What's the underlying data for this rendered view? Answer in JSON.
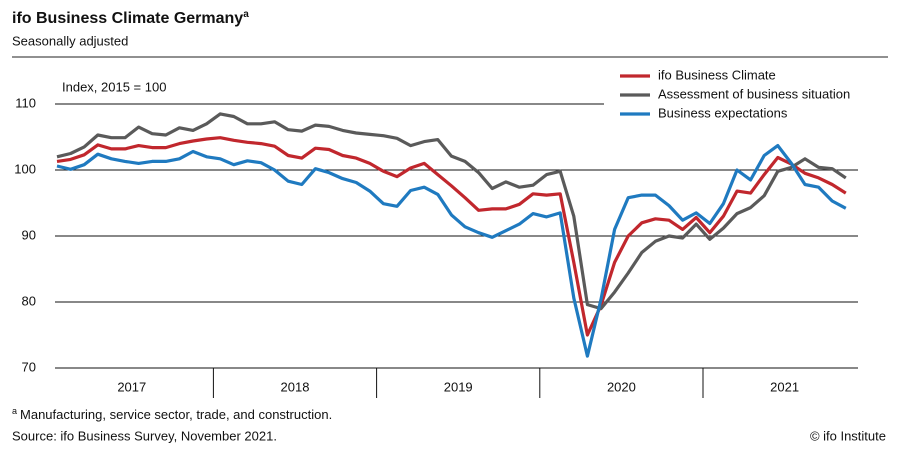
{
  "chart_data": {
    "type": "line",
    "title": "ifo Business Climate Germany",
    "title_note": "a",
    "subtitle": "Seasonally adjusted",
    "y_axis_label": "Index, 2015 = 100",
    "categories": [
      "2017",
      null,
      null,
      null,
      null,
      null,
      null,
      null,
      null,
      null,
      null,
      null,
      "2018",
      null,
      null,
      null,
      null,
      null,
      null,
      null,
      null,
      null,
      null,
      null,
      "2019",
      null,
      null,
      null,
      null,
      null,
      null,
      null,
      null,
      null,
      null,
      null,
      "2020",
      null,
      null,
      null,
      null,
      null,
      null,
      null,
      null,
      null,
      null,
      null,
      "2021",
      null,
      null,
      null,
      null,
      null,
      null,
      null,
      null,
      null,
      null
    ],
    "series": [
      {
        "name": "ifo Business Climate",
        "color": "#c1272d",
        "values": [
          101.3,
          101.6,
          102.3,
          103.8,
          103.2,
          103.2,
          103.7,
          103.4,
          103.4,
          104.0,
          104.4,
          104.7,
          104.9,
          104.5,
          104.2,
          104.0,
          103.6,
          102.2,
          101.8,
          103.3,
          103.1,
          102.2,
          101.8,
          101.0,
          99.8,
          99.0,
          100.3,
          101.0,
          99.3,
          97.6,
          95.8,
          93.9,
          94.1,
          94.1,
          94.8,
          96.4,
          96.2,
          96.4,
          86.0,
          75.0,
          79.5,
          86.0,
          90.0,
          92.0,
          92.6,
          92.4,
          91.0,
          92.8,
          90.5,
          93.0,
          96.8,
          96.5,
          99.3,
          101.9,
          100.9,
          99.5,
          98.8,
          97.8,
          96.5
        ]
      },
      {
        "name": "Assessment of business situation",
        "color": "#5a5a5a",
        "values": [
          102.0,
          102.5,
          103.5,
          105.3,
          104.9,
          104.9,
          106.5,
          105.5,
          105.3,
          106.4,
          106.0,
          107.0,
          108.5,
          108.1,
          107.0,
          107.0,
          107.3,
          106.1,
          105.9,
          106.8,
          106.6,
          106.0,
          105.6,
          105.4,
          105.2,
          104.8,
          103.7,
          104.3,
          104.6,
          102.1,
          101.3,
          99.6,
          97.2,
          98.2,
          97.4,
          97.7,
          99.3,
          99.8,
          93.0,
          79.6,
          79.0,
          81.5,
          84.4,
          87.5,
          89.2,
          90.0,
          89.7,
          91.8,
          89.5,
          91.2,
          93.4,
          94.3,
          96.1,
          99.8,
          100.4,
          101.7,
          100.4,
          100.2,
          98.8
        ]
      },
      {
        "name": "Business expectations",
        "color": "#1f7ac0",
        "values": [
          100.6,
          100.1,
          100.8,
          102.4,
          101.7,
          101.3,
          101.0,
          101.3,
          101.3,
          101.7,
          102.8,
          102.0,
          101.7,
          100.8,
          101.4,
          101.1,
          100.0,
          98.3,
          97.8,
          100.2,
          99.6,
          98.7,
          98.1,
          96.8,
          94.9,
          94.5,
          96.9,
          97.4,
          96.3,
          93.2,
          91.4,
          90.5,
          89.8,
          90.8,
          91.8,
          93.4,
          92.9,
          93.5,
          80.6,
          71.8,
          80.4,
          91.0,
          95.8,
          96.2,
          96.2,
          94.6,
          92.4,
          93.5,
          91.9,
          94.9,
          100.0,
          98.5,
          102.2,
          103.7,
          101.0,
          97.8,
          97.4,
          95.3,
          94.2
        ]
      }
    ],
    "ylim": [
      70,
      110
    ],
    "yticks": [
      70,
      80,
      90,
      100,
      110
    ],
    "grid": true,
    "legend": "top-right",
    "notes": [
      {
        "marker": "a",
        "text": "Manufacturing, service sector, trade, and construction."
      }
    ],
    "source": "Source: ifo Business Survey, November 2021.",
    "credit": "© ifo Institute"
  }
}
